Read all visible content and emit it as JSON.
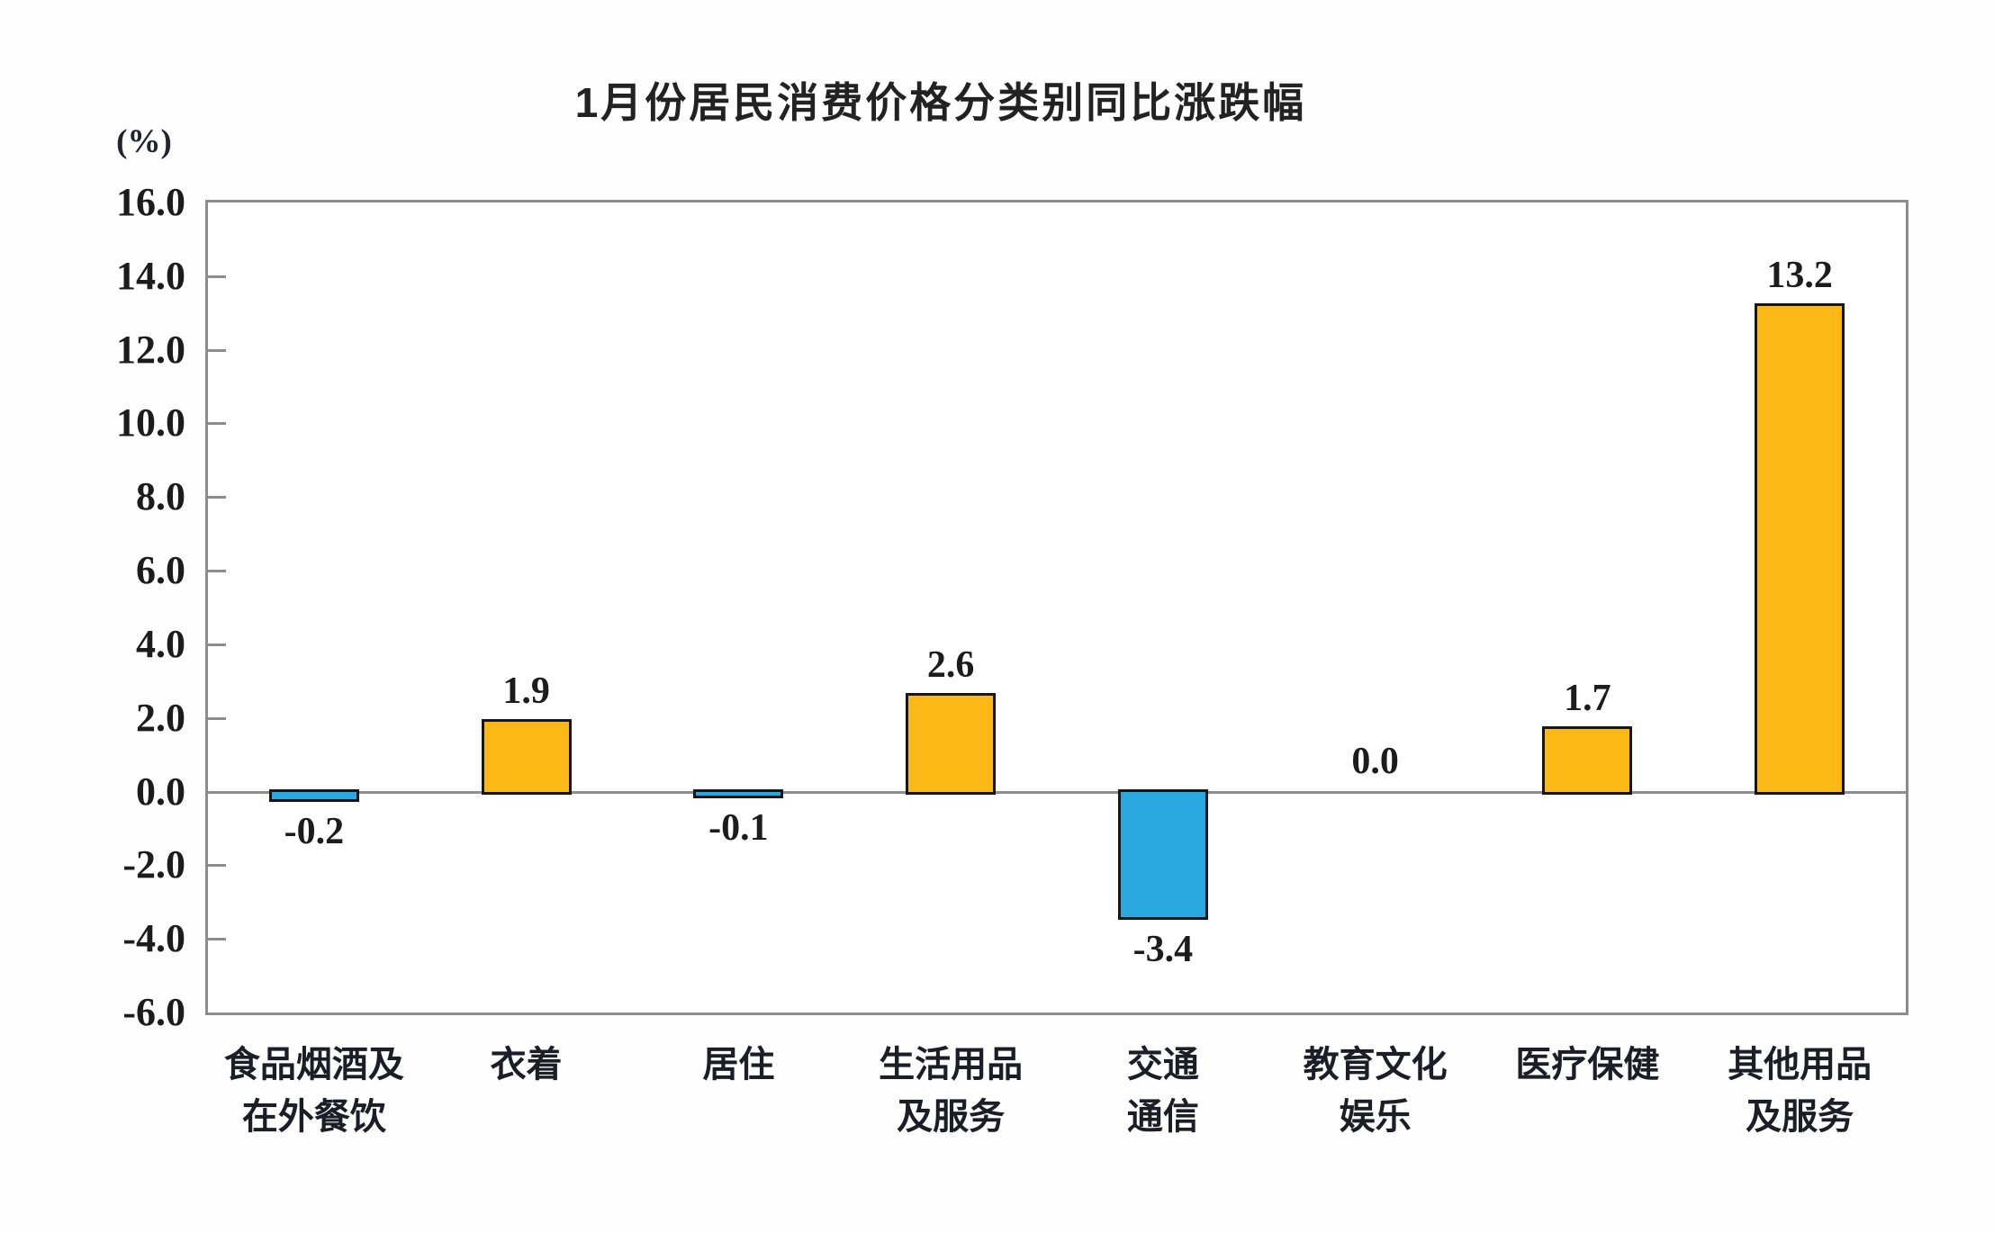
{
  "chart_data": {
    "type": "bar",
    "title": "1月份居民消费价格分类别同比涨跌幅",
    "unit_label": "(%)",
    "categories": [
      "食品烟酒及\n在外餐饮",
      "衣着",
      "居住",
      "生活用品\n及服务",
      "交通\n通信",
      "教育文化\n娱乐",
      "医疗保健",
      "其他用品\n及服务"
    ],
    "values": [
      -0.2,
      1.9,
      -0.1,
      2.6,
      -3.4,
      0.0,
      1.7,
      13.2
    ],
    "value_labels": [
      "-0.2",
      "1.9",
      "-0.1",
      "2.6",
      "-3.4",
      "0.0",
      "1.7",
      "13.2"
    ],
    "xlabel": "",
    "ylabel": "(%)",
    "ylim": [
      -6.0,
      16.0
    ],
    "ytick_step": 2.0,
    "yticks": [
      "16.0",
      "14.0",
      "12.0",
      "10.0",
      "8.0",
      "6.0",
      "4.0",
      "2.0",
      "0.0",
      "-2.0",
      "-4.0",
      "-6.0"
    ],
    "grid": false,
    "legend": null,
    "colors": {
      "positive_bar": "#FBB817",
      "negative_bar": "#29A9E0",
      "bar_border": "#161616",
      "axis_border": "#8c8c8c",
      "zero_line": "#8f8f8f",
      "text": "#1c1c1c"
    }
  }
}
